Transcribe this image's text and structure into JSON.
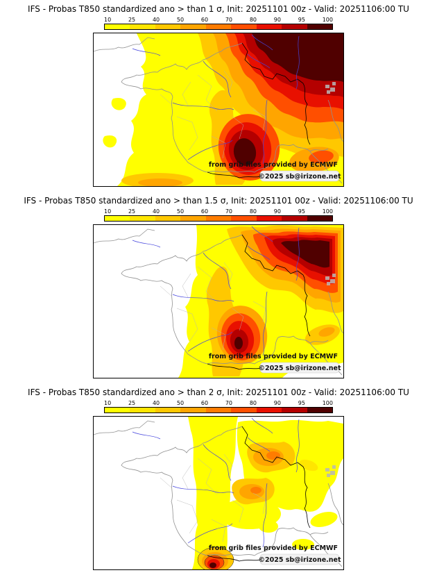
{
  "page": {
    "background": "#ffffff"
  },
  "colorbar": {
    "ticks": [
      "10",
      "25",
      "40",
      "50",
      "60",
      "70",
      "80",
      "90",
      "95",
      "100"
    ],
    "colors": [
      "#FFFF00",
      "#FFE600",
      "#FFC800",
      "#FFA500",
      "#FF7C00",
      "#FF4F00",
      "#E81000",
      "#B40000",
      "#500000"
    ]
  },
  "panels": [
    {
      "id": "sigma-1",
      "title": "IFS - Probas T850  standardized ano > than 1 σ, Init: 20251101 00z - Valid: 20251106:00 TU",
      "watermark": "from grib files provided by ECMWF",
      "copyright": "©2025 sb@irizone.net"
    },
    {
      "id": "sigma-1.5",
      "title": "IFS - Probas T850  standardized ano > than 1.5 σ, Init: 20251101 00z - Valid: 20251106:00 TU",
      "watermark": "from grib files provided by ECMWF",
      "copyright": "©2025 sb@irizone.net"
    },
    {
      "id": "sigma-2",
      "title": "IFS - Probas T850  standardized ano > than 2 σ, Init: 20251101 00z - Valid: 20251106:00 TU",
      "watermark": "from grib files provided by ECMWF",
      "copyright": "©2025 sb@irizone.net"
    }
  ]
}
